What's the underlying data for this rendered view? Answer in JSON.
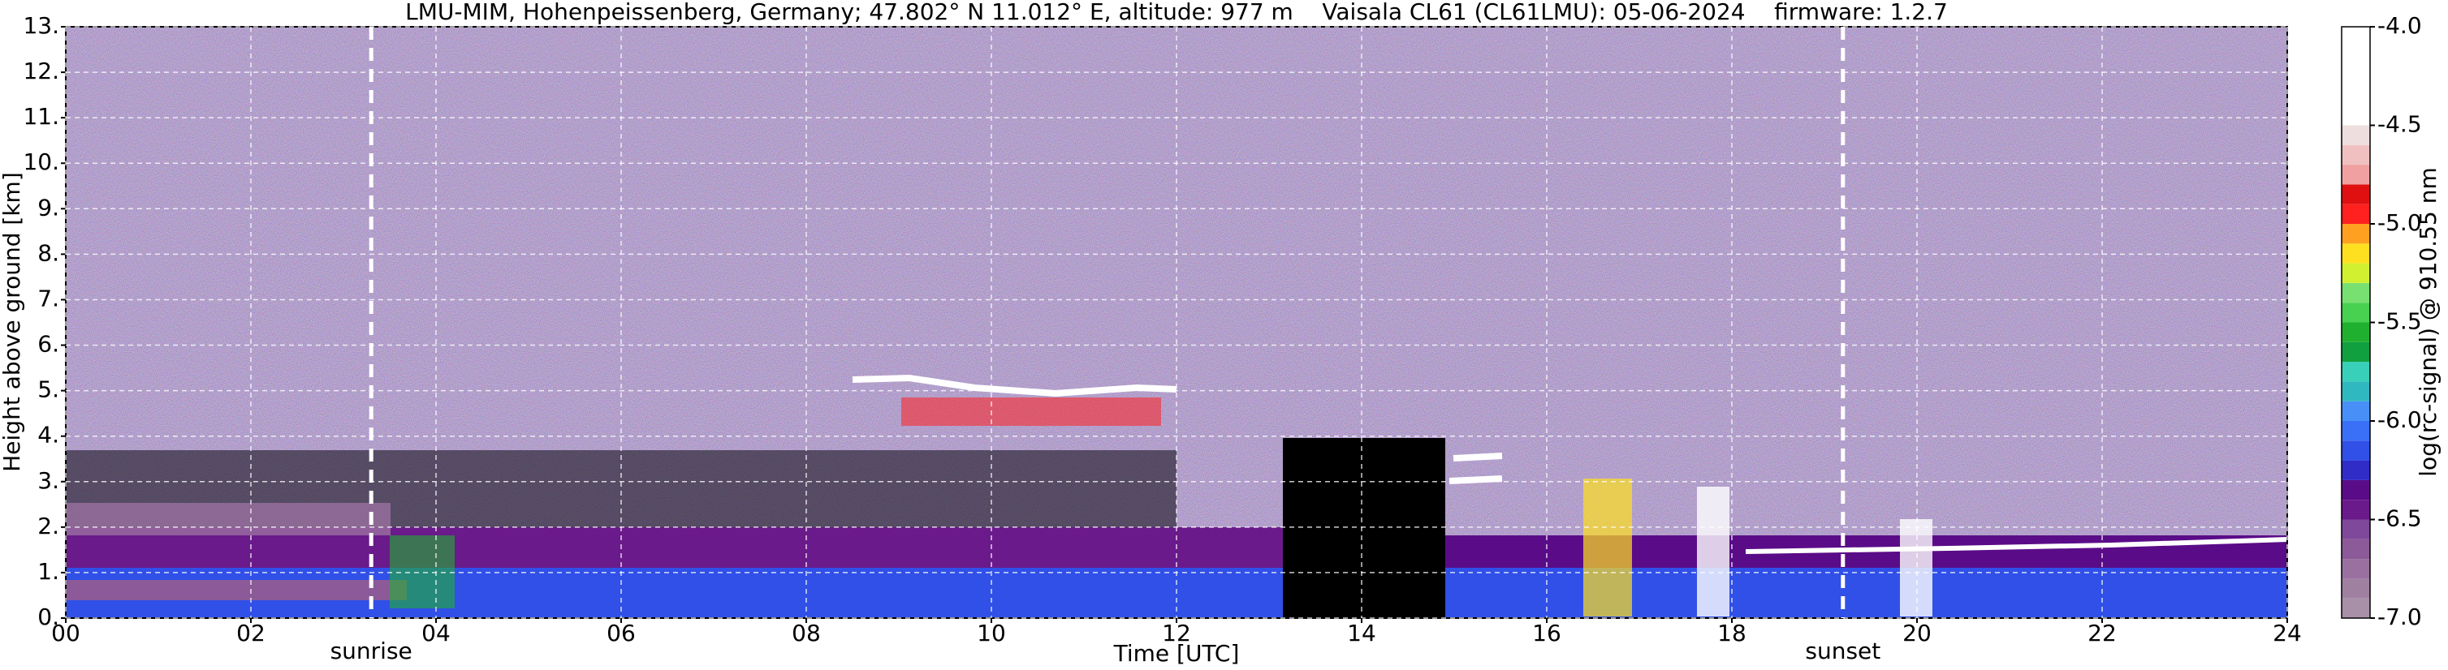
{
  "chart_data": {
    "type": "heatmap",
    "title": "LMU-MIM, Hohenpeissenberg, Germany; 47.802° N 11.012° E, altitude: 977 m    Vaisala CL61 (CL61LMU): 05-06-2024    firmware: 1.2.7",
    "xlabel": "Time [UTC]",
    "ylabel": "Height above ground [km]",
    "xlim": [
      0,
      24
    ],
    "xticks": [
      {
        "value": 0,
        "label": "00"
      },
      {
        "value": 2,
        "label": "02"
      },
      {
        "value": 4,
        "label": "04"
      },
      {
        "value": 6,
        "label": "06"
      },
      {
        "value": 8,
        "label": "08"
      },
      10,
      12,
      14,
      16,
      18,
      20,
      22,
      24
    ],
    "ylim": [
      0,
      13
    ],
    "yticks": [
      {
        "value": 0,
        "label": "0."
      },
      {
        "value": 1,
        "label": "1."
      },
      {
        "value": 2,
        "label": "2."
      },
      {
        "value": 3,
        "label": "3."
      },
      {
        "value": 4,
        "label": "4."
      },
      {
        "value": 5,
        "label": "5."
      },
      {
        "value": 6,
        "label": "6."
      },
      {
        "value": 7,
        "label": "7."
      },
      {
        "value": 8,
        "label": "8."
      },
      {
        "value": 9,
        "label": "9."
      },
      {
        "value": 10,
        "label": "10."
      },
      {
        "value": 11,
        "label": "11."
      },
      {
        "value": 12,
        "label": "12."
      },
      {
        "value": 13,
        "label": "13."
      }
    ],
    "grid": true,
    "annotations": [
      {
        "x": 3.3,
        "text": "sunrise"
      },
      {
        "x": 19.2,
        "text": "sunset"
      }
    ],
    "colorbar": {
      "label": "log(rc-signal) @ 910.55 nm",
      "clim": [
        -7,
        -4
      ],
      "ticks": [
        {
          "value": -7,
          "label": "-7.0"
        },
        -6.5,
        {
          "value": -6,
          "label": "-6.0"
        },
        -5.5,
        {
          "value": -5,
          "label": "-5.0"
        },
        -4.5,
        {
          "value": -4,
          "label": "-4.0"
        }
      ],
      "levels": [
        -7.0,
        -6.9,
        -6.8,
        -6.7,
        -6.6,
        -6.5,
        -6.4,
        -6.3,
        -6.2,
        -6.1,
        -6.0,
        -5.9,
        -5.8,
        -5.7,
        -5.6,
        -5.5,
        -5.4,
        -5.3,
        -5.2,
        -5.1,
        -5.0,
        -4.9,
        -4.8,
        -4.7,
        -4.6,
        -4.5,
        -4.0
      ],
      "colors": [
        "#a890a8",
        "#a080a0",
        "#9a70a0",
        "#8c5a98",
        "#80489a",
        "#6a1a8a",
        "#5a0c88",
        "#2f2cc8",
        "#3050e8",
        "#3a70f8",
        "#4890f8",
        "#30b8c0",
        "#38d0b8",
        "#10a040",
        "#20b030",
        "#48d050",
        "#78e070",
        "#d0f030",
        "#ffe020",
        "#ffa020",
        "#ff2020",
        "#e01010",
        "#f0a0a0",
        "#f0c0c0",
        "#eedede",
        "#ffffff"
      ]
    }
  }
}
